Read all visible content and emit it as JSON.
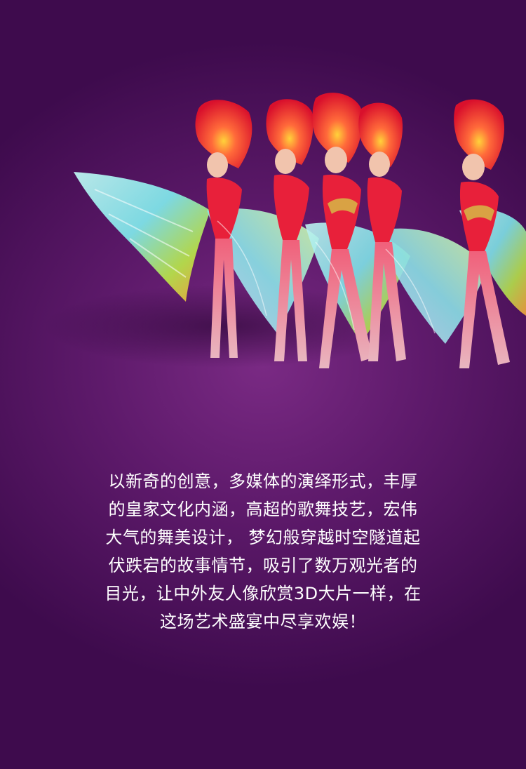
{
  "photo": {
    "subject": "dancers-in-feather-costumes",
    "colors": {
      "feather_red": "#e8203a",
      "feather_cyan": "#7fe3e8",
      "feather_green": "#b6e04a",
      "skin": "#f1c4ad",
      "costume_gold": "#d9a244"
    }
  },
  "description": {
    "lines": [
      "以新奇的创意，多媒体的演绎形式，丰厚",
      "的皇家文化内涵，高超的歌舞技艺，宏伟",
      "大气的舞美设计， 梦幻般穿越时空隧道起",
      "伏跌宕的故事情节，吸引了数万观光者的",
      "目光，让中外友人像欣赏3D大片一样，在",
      "这场艺术盛宴中尽享欢娱！"
    ]
  }
}
